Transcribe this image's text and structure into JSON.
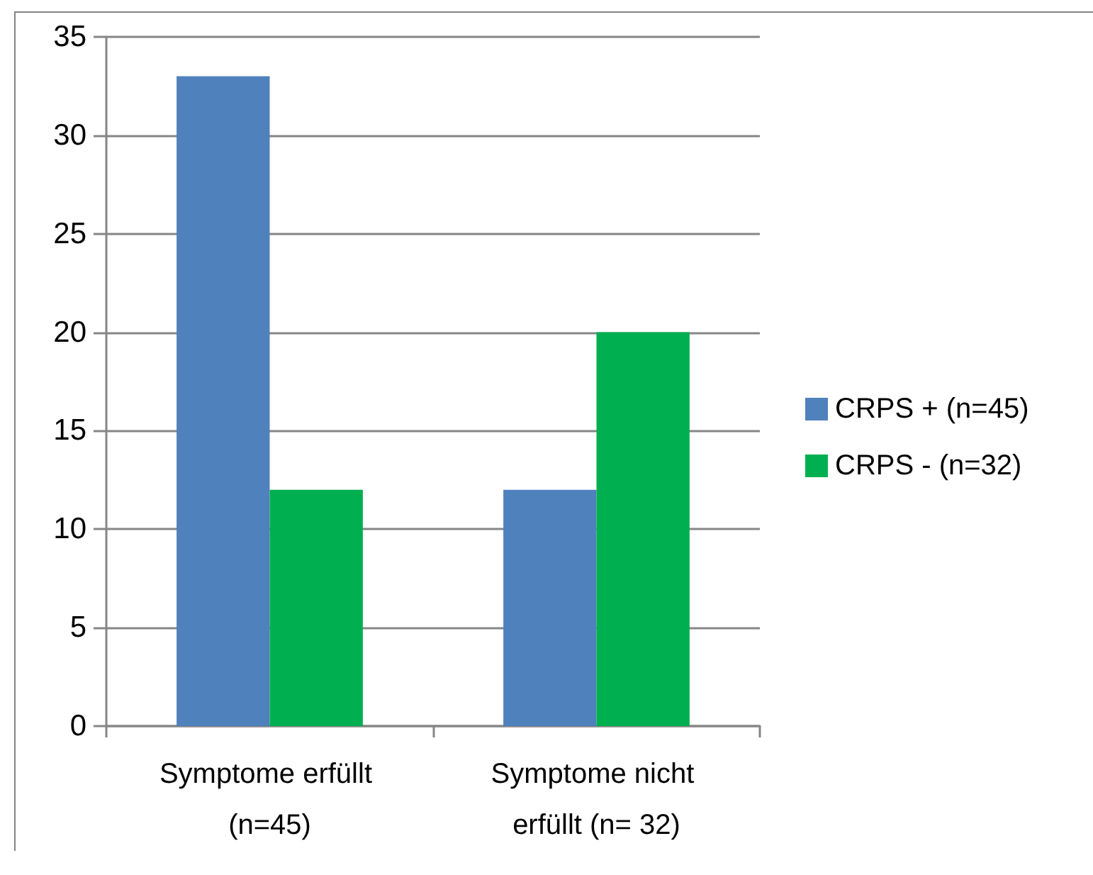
{
  "chart_data": {
    "type": "bar",
    "categories": [
      "Symptome erfüllt (n=45)",
      "Symptome nicht erfüllt (n= 32)"
    ],
    "series": [
      {
        "name": "CRPS + (n=45)",
        "color": "#4f81bd",
        "values": [
          33,
          12
        ]
      },
      {
        "name": "CRPS - (n=32)",
        "color": "#00b050",
        "values": [
          12,
          20
        ]
      }
    ],
    "ylim": [
      0,
      35
    ],
    "yticks": [
      0,
      5,
      10,
      15,
      20,
      25,
      30,
      35
    ],
    "grid": "y",
    "legend": "right"
  }
}
